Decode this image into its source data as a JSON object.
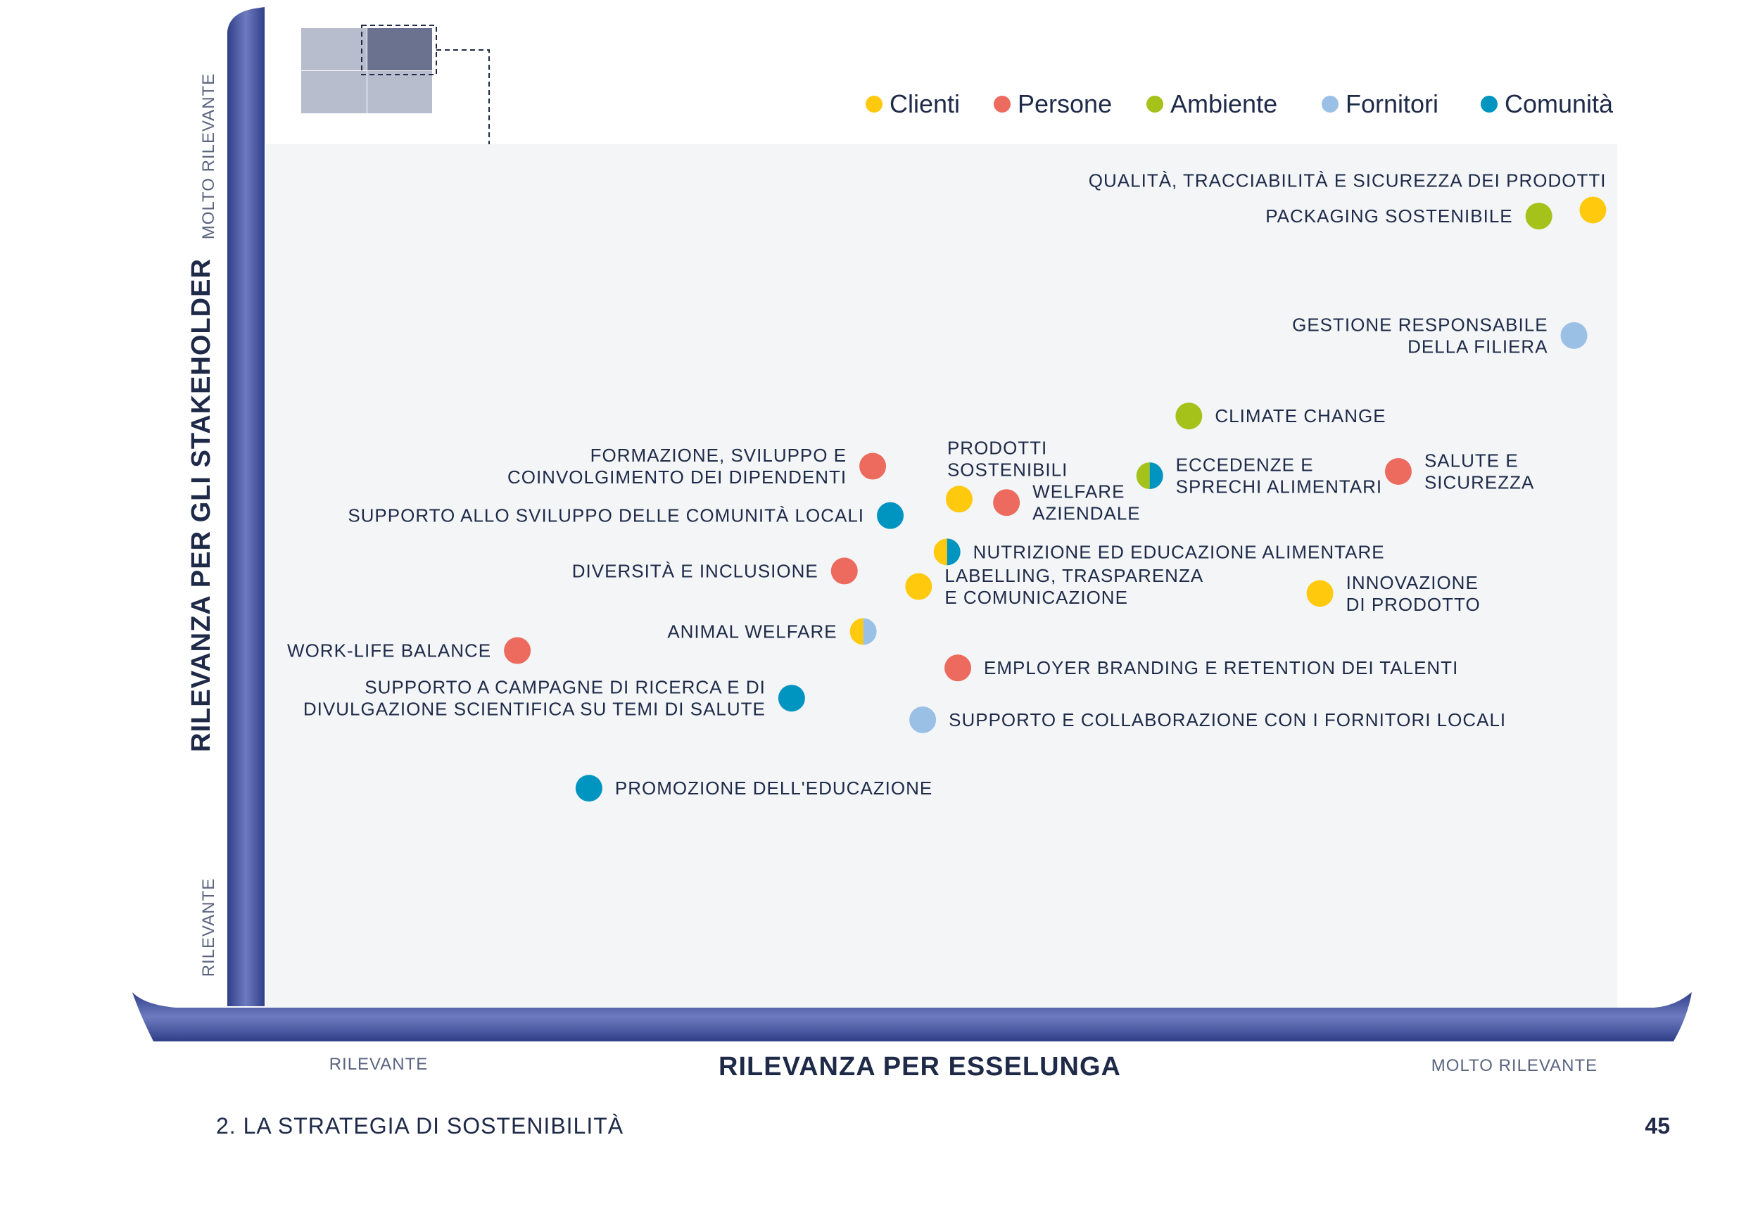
{
  "chart_data": {
    "type": "scatter",
    "x_axis": {
      "title": "RILEVANZA PER ESSELUNGA",
      "low_label": "RILEVANTE",
      "high_label": "MOLTO RILEVANTE",
      "range": [
        0,
        100
      ]
    },
    "y_axis": {
      "title": "RILEVANZA PER GLI STAKEHOLDER",
      "low_label": "RILEVANTE",
      "high_label": "MOLTO RILEVANTE",
      "range": [
        0,
        100
      ]
    },
    "grid": false,
    "legend_position": "top-right",
    "categories": [
      {
        "key": "clienti",
        "name": "Clienti",
        "color": "#FFC90E"
      },
      {
        "key": "persone",
        "name": "Persone",
        "color": "#EC6B5E"
      },
      {
        "key": "ambiente",
        "name": "Ambiente",
        "color": "#A5C21B"
      },
      {
        "key": "fornitori",
        "name": "Fornitori",
        "color": "#9BC0E6"
      },
      {
        "key": "comunita",
        "name": "Comunità",
        "color": "#0094C0"
      }
    ],
    "points": [
      {
        "lines": [
          "QUALITÀ, TRACCIABILITÀ E SICUREZZA DEI PRODOTTI"
        ],
        "x": 98.2,
        "y": 92.4,
        "cats": [
          "clienti"
        ],
        "label_side": "above-left"
      },
      {
        "lines": [
          "PACKAGING SOSTENIBILE"
        ],
        "x": 94.2,
        "y": 91.7,
        "cats": [
          "ambiente"
        ],
        "label_side": "left"
      },
      {
        "lines": [
          "GESTIONE RESPONSABILE",
          "DELLA FILIERA"
        ],
        "x": 96.8,
        "y": 77.9,
        "cats": [
          "fornitori"
        ],
        "label_side": "left"
      },
      {
        "lines": [
          "CLIMATE CHANGE"
        ],
        "x": 68.3,
        "y": 68.6,
        "cats": [
          "ambiente"
        ],
        "label_side": "right"
      },
      {
        "lines": [
          "PRODOTTI",
          "SOSTENIBILI"
        ],
        "x": 51.3,
        "y": 59.0,
        "cats": [
          "clienti"
        ],
        "label_side": "above"
      },
      {
        "lines": [
          "FORMAZIONE, SVILUPPO E",
          "COINVOLGIMENTO DEI DIPENDENTI"
        ],
        "x": 44.9,
        "y": 62.8,
        "cats": [
          "persone"
        ],
        "label_side": "left"
      },
      {
        "lines": [
          "WELFARE",
          "AZIENDALE"
        ],
        "x": 54.8,
        "y": 58.6,
        "cats": [
          "persone"
        ],
        "label_side": "right"
      },
      {
        "lines": [
          "ECCEDENZE E",
          "SPRECHI ALIMENTARI"
        ],
        "x": 65.4,
        "y": 61.7,
        "cats": [
          "ambiente",
          "comunita"
        ],
        "label_side": "right"
      },
      {
        "lines": [
          "SALUTE E",
          "SICUREZZA"
        ],
        "x": 83.8,
        "y": 62.2,
        "cats": [
          "persone"
        ],
        "label_side": "right"
      },
      {
        "lines": [
          "SUPPORTO ALLO SVILUPPO DELLE COMUNITÀ LOCALI"
        ],
        "x": 46.2,
        "y": 57.1,
        "cats": [
          "comunita"
        ],
        "label_side": "left"
      },
      {
        "lines": [
          "NUTRIZIONE ED EDUCAZIONE ALIMENTARE"
        ],
        "x": 50.4,
        "y": 52.9,
        "cats": [
          "clienti",
          "comunita"
        ],
        "label_side": "right"
      },
      {
        "lines": [
          "DIVERSITÀ E INCLUSIONE"
        ],
        "x": 42.8,
        "y": 50.7,
        "cats": [
          "persone"
        ],
        "label_side": "left"
      },
      {
        "lines": [
          "LABELLING, TRASPARENZA",
          "E COMUNICAZIONE"
        ],
        "x": 48.3,
        "y": 48.9,
        "cats": [
          "clienti"
        ],
        "label_side": "right"
      },
      {
        "lines": [
          "INNOVAZIONE",
          "DI PRODOTTO"
        ],
        "x": 78.0,
        "y": 48.1,
        "cats": [
          "clienti"
        ],
        "label_side": "right"
      },
      {
        "lines": [
          "ANIMAL WELFARE"
        ],
        "x": 44.2,
        "y": 43.7,
        "cats": [
          "clienti",
          "fornitori"
        ],
        "label_side": "left"
      },
      {
        "lines": [
          "WORK-LIFE BALANCE"
        ],
        "x": 18.6,
        "y": 41.5,
        "cats": [
          "persone"
        ],
        "label_side": "left"
      },
      {
        "lines": [
          "EMPLOYER BRANDING E RETENTION DEI TALENTI"
        ],
        "x": 51.2,
        "y": 39.5,
        "cats": [
          "persone"
        ],
        "label_side": "right"
      },
      {
        "lines": [
          "SUPPORTO A CAMPAGNE DI RICERCA E DI",
          "DIVULGAZIONE SCIENTIFICA SU TEMI DI SALUTE"
        ],
        "x": 38.9,
        "y": 36.0,
        "cats": [
          "comunita"
        ],
        "label_side": "left"
      },
      {
        "lines": [
          "SUPPORTO E COLLABORAZIONE CON I FORNITORI LOCALI"
        ],
        "x": 48.6,
        "y": 33.5,
        "cats": [
          "fornitori"
        ],
        "label_side": "right"
      },
      {
        "lines": [
          "PROMOZIONE DELL'EDUCAZIONE"
        ],
        "x": 23.9,
        "y": 25.6,
        "cats": [
          "comunita"
        ],
        "label_side": "right"
      }
    ]
  },
  "footer": {
    "section": "2. LA STRATEGIA DI SOSTENIBILITÀ",
    "page": "45"
  }
}
